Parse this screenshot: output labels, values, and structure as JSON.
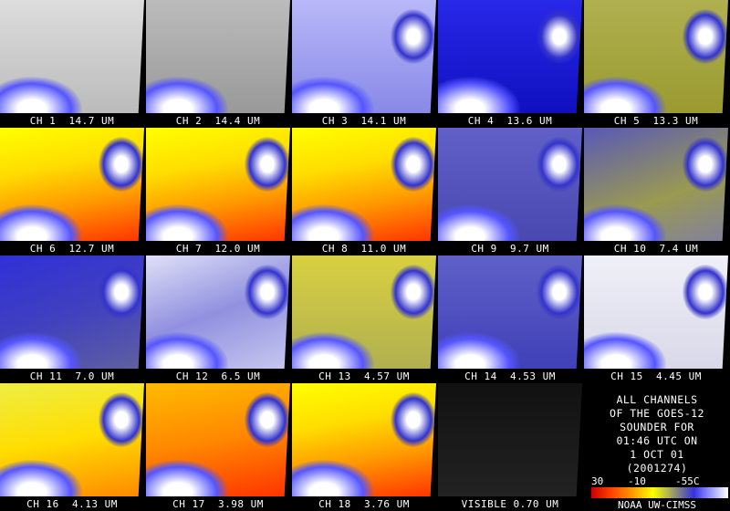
{
  "panels": [
    {
      "label": "CH 1  14.7 UM"
    },
    {
      "label": "CH 2  14.4 UM"
    },
    {
      "label": "CH 3  14.1 UM"
    },
    {
      "label": "CH 4  13.6 UM"
    },
    {
      "label": "CH 5  13.3 UM"
    },
    {
      "label": "CH 6  12.7 UM"
    },
    {
      "label": "CH 7  12.0 UM"
    },
    {
      "label": "CH 8  11.0 UM"
    },
    {
      "label": "CH 9  9.7 UM"
    },
    {
      "label": "CH 10  7.4 UM"
    },
    {
      "label": "CH 11  7.0 UM"
    },
    {
      "label": "CH 12  6.5 UM"
    },
    {
      "label": "CH 13  4.57 UM"
    },
    {
      "label": "CH 14  4.53 UM"
    },
    {
      "label": "CH 15  4.45 UM"
    },
    {
      "label": "CH 16  4.13 UM"
    },
    {
      "label": "CH 17  3.98 UM"
    },
    {
      "label": "CH 18  3.76 UM"
    },
    {
      "label": "VISIBLE 0.70 UM"
    }
  ],
  "info": {
    "lines": [
      "ALL CHANNELS",
      "OF THE GOES-12",
      "SOUNDER FOR",
      "01:46 UTC ON",
      "1 OCT 01",
      "(2001274)"
    ],
    "scale_labels": [
      "30",
      "-10",
      "-55C"
    ],
    "credit": "NOAA UW-CIMSS"
  }
}
